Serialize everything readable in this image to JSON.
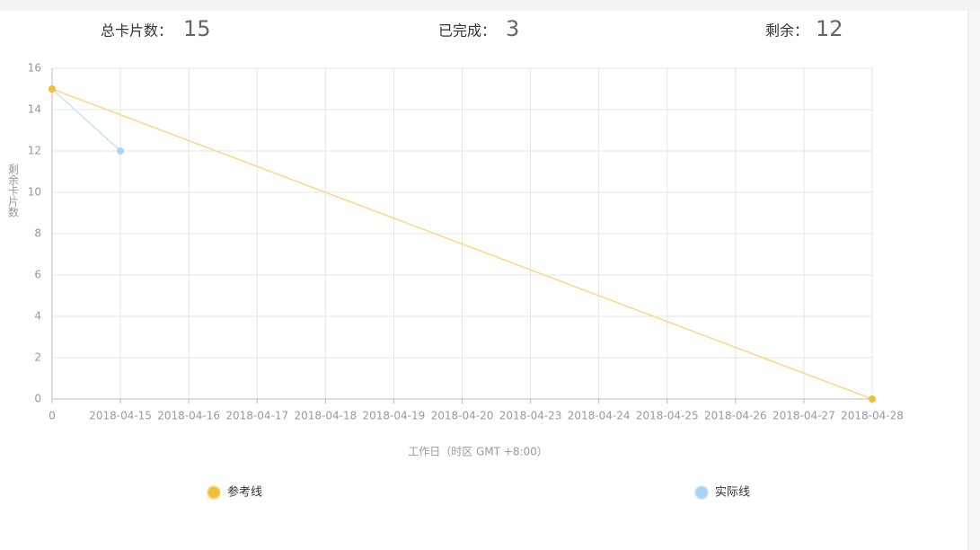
{
  "summary": [
    {
      "label": "总卡片数：",
      "value": 15
    },
    {
      "label": "已完成：",
      "value": 3
    },
    {
      "label": "剩余：",
      "value": 12
    }
  ],
  "chart_data": {
    "type": "line",
    "categories": [
      "0",
      "2018-04-15",
      "2018-04-16",
      "2018-04-17",
      "2018-04-18",
      "2018-04-19",
      "2018-04-20",
      "2018-04-23",
      "2018-04-24",
      "2018-04-25",
      "2018-04-26",
      "2018-04-27",
      "2018-04-28"
    ],
    "series": [
      {
        "name": "参考线",
        "color": "#f0bf3a",
        "line_color": "#fbd98a",
        "values": [
          15,
          13.75,
          12.5,
          11.25,
          10,
          8.75,
          7.5,
          6.25,
          5,
          3.75,
          2.5,
          1.25,
          0
        ]
      },
      {
        "name": "实际线",
        "color": "#a9d3f0",
        "line_color": "#c5e2f6",
        "values": [
          15,
          12,
          null,
          null,
          null,
          null,
          null,
          null,
          null,
          null,
          null,
          null,
          null
        ]
      }
    ],
    "ylim": [
      0,
      16
    ],
    "yticks": [
      0,
      2,
      4,
      6,
      8,
      10,
      12,
      14,
      16
    ],
    "grid": true,
    "y_label": "剩余卡片数",
    "x_label": "工作日（时区 GMT +8:00）",
    "legend": "bottom"
  }
}
